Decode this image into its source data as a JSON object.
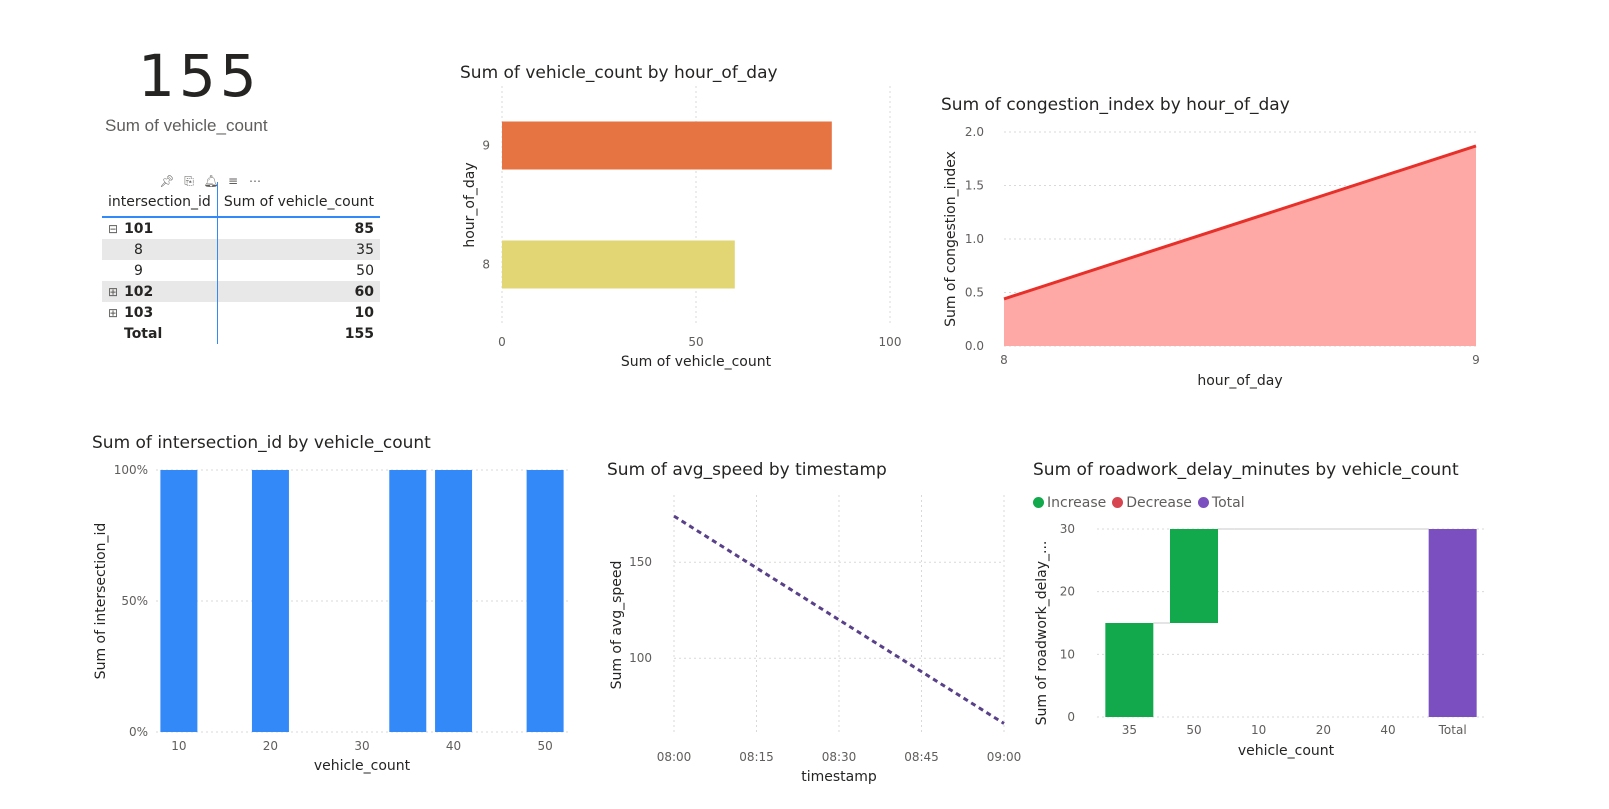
{
  "kpi": {
    "value": "155",
    "label": "Sum of vehicle_count"
  },
  "matrix": {
    "headers": [
      "intersection_id",
      "Sum of vehicle_count"
    ],
    "toolbar_icons": [
      "pin-icon",
      "copy-icon",
      "bell-icon",
      "filter-icon",
      "more-icon"
    ],
    "rows": [
      {
        "label": "101",
        "value": "85",
        "level": 0,
        "expand": "⊟",
        "bold": true,
        "shaded": false
      },
      {
        "label": "8",
        "value": "35",
        "level": 1,
        "expand": "",
        "bold": false,
        "shaded": true
      },
      {
        "label": "9",
        "value": "50",
        "level": 1,
        "expand": "",
        "bold": false,
        "shaded": false
      },
      {
        "label": "102",
        "value": "60",
        "level": 0,
        "expand": "⊞",
        "bold": true,
        "shaded": true
      },
      {
        "label": "103",
        "value": "10",
        "level": 0,
        "expand": "⊞",
        "bold": true,
        "shaded": false
      },
      {
        "label": "Total",
        "value": "155",
        "level": 0,
        "expand": "",
        "bold": true,
        "shaded": false
      }
    ]
  },
  "chart_data": [
    {
      "id": "bar-hour",
      "type": "bar",
      "orientation": "horizontal",
      "title": "Sum of vehicle_count by hour_of_day",
      "xlabel": "Sum of vehicle_count",
      "ylabel": "hour_of_day",
      "categories": [
        "9",
        "8"
      ],
      "values": [
        85,
        60
      ],
      "colors": [
        "#e67342",
        "#e2d574"
      ],
      "xlim": [
        0,
        100
      ],
      "xticks": [
        "0",
        "50",
        "100"
      ],
      "grid": true
    },
    {
      "id": "area-congestion",
      "type": "area",
      "title": "Sum of congestion_index by hour_of_day",
      "xlabel": "hour_of_day",
      "ylabel": "Sum of congestion_index",
      "x": [
        "8",
        "9"
      ],
      "values": [
        0.44,
        1.87
      ],
      "ylim": [
        0,
        2
      ],
      "yticks": [
        "0.0",
        "0.5",
        "1.0",
        "1.5",
        "2.0"
      ],
      "line_color": "#e8302a",
      "fill_color": "#fea9a5",
      "grid": true
    },
    {
      "id": "bar-intersection",
      "type": "bar",
      "title": "Sum of intersection_id by vehicle_count",
      "xlabel": "vehicle_count",
      "ylabel": "Sum of intersection_id",
      "x": [
        10,
        20,
        35,
        40,
        50
      ],
      "values": [
        1,
        1,
        1,
        1,
        1
      ],
      "xlim": [
        7.5,
        52.5
      ],
      "xticks": [
        "10",
        "20",
        "30",
        "40",
        "50"
      ],
      "ylim": [
        0,
        1
      ],
      "yticks": [
        "0%",
        "50%",
        "100%"
      ],
      "color": "#3489f8",
      "grid": true
    },
    {
      "id": "line-speed",
      "type": "line",
      "title": "Sum of avg_speed by timestamp",
      "xlabel": "timestamp",
      "ylabel": "Sum of avg_speed",
      "x": [
        "08:00",
        "09:00"
      ],
      "values": [
        174,
        66
      ],
      "xticks": [
        "08:00",
        "08:15",
        "08:30",
        "08:45",
        "09:00"
      ],
      "ylim": [
        60,
        185
      ],
      "yticks": [
        "100",
        "150"
      ],
      "line_color": "#59418a",
      "line_style": "dotted",
      "grid": true
    },
    {
      "id": "waterfall-delay",
      "type": "waterfall",
      "title": "Sum of roadwork_delay_minutes by vehicle_count",
      "xlabel": "vehicle_count",
      "ylabel": "Sum of roadwork_delay_...",
      "categories": [
        "35",
        "50",
        "10",
        "20",
        "40",
        "Total"
      ],
      "values": [
        15,
        15,
        0,
        0,
        0,
        30
      ],
      "ylim": [
        0,
        30
      ],
      "yticks": [
        "0",
        "10",
        "20",
        "30"
      ],
      "legend": [
        {
          "label": "Increase",
          "color": "#12a94c"
        },
        {
          "label": "Decrease",
          "color": "#d64550"
        },
        {
          "label": "Total",
          "color": "#7c4fc0"
        }
      ],
      "legend_position": "top-left",
      "grid": true
    }
  ]
}
